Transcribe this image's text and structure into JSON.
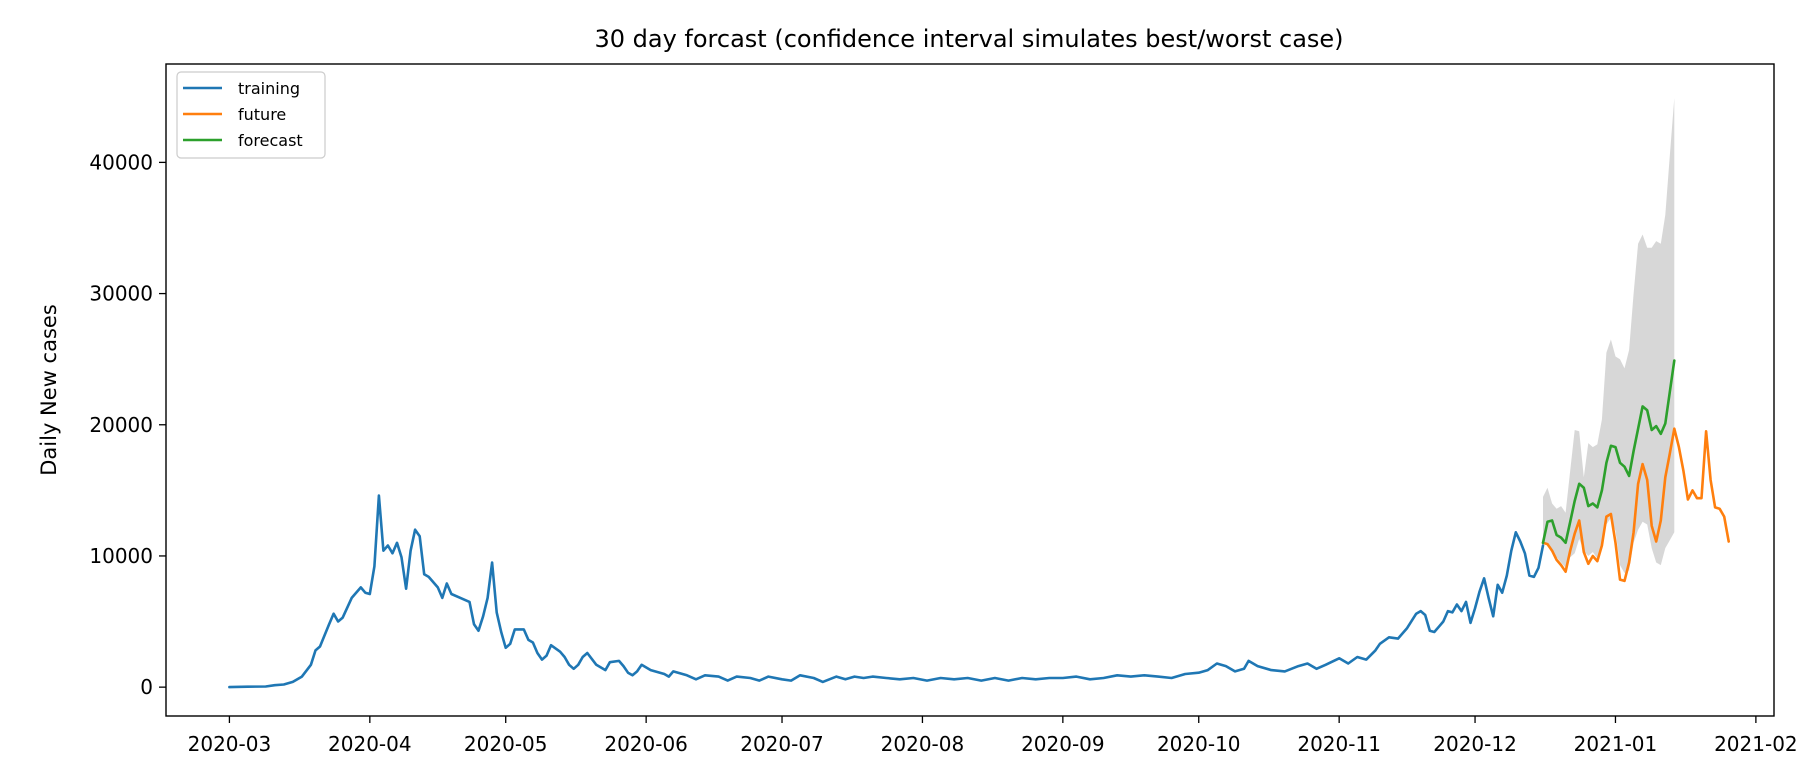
{
  "chart_data": {
    "type": "line",
    "title": "30 day forcast (confidence interval simulates best/worst case)",
    "xlabel": "",
    "ylabel": "Daily New cases",
    "xlim": [
      "2020-02-16",
      "2021-02-05"
    ],
    "ylim": [
      -2200,
      47500
    ],
    "x_ticks": [
      "2020-03",
      "2020-04",
      "2020-05",
      "2020-06",
      "2020-07",
      "2020-08",
      "2020-09",
      "2020-10",
      "2020-11",
      "2020-12",
      "2021-01",
      "2021-02"
    ],
    "y_ticks": [
      0,
      10000,
      20000,
      30000,
      40000
    ],
    "grid": false,
    "legend": {
      "location": "upper-left",
      "entries": [
        "training",
        "future",
        "forecast"
      ]
    },
    "series": [
      {
        "name": "training",
        "color": "#1f77b4",
        "points": [
          [
            "2020-03-01",
            0
          ],
          [
            "2020-03-05",
            30
          ],
          [
            "2020-03-09",
            50
          ],
          [
            "2020-03-11",
            150
          ],
          [
            "2020-03-13",
            200
          ],
          [
            "2020-03-15",
            400
          ],
          [
            "2020-03-17",
            800
          ],
          [
            "2020-03-19",
            1700
          ],
          [
            "2020-03-20",
            2800
          ],
          [
            "2020-03-21",
            3100
          ],
          [
            "2020-03-23",
            4800
          ],
          [
            "2020-03-24",
            5600
          ],
          [
            "2020-03-25",
            5000
          ],
          [
            "2020-03-26",
            5300
          ],
          [
            "2020-03-28",
            6800
          ],
          [
            "2020-03-30",
            7600
          ],
          [
            "2020-03-31",
            7200
          ],
          [
            "2020-04-01",
            7100
          ],
          [
            "2020-04-02",
            9200
          ],
          [
            "2020-04-03",
            14600
          ],
          [
            "2020-04-04",
            10400
          ],
          [
            "2020-04-05",
            10800
          ],
          [
            "2020-04-06",
            10200
          ],
          [
            "2020-04-07",
            11000
          ],
          [
            "2020-04-08",
            9900
          ],
          [
            "2020-04-09",
            7500
          ],
          [
            "2020-04-10",
            10400
          ],
          [
            "2020-04-11",
            12000
          ],
          [
            "2020-04-12",
            11500
          ],
          [
            "2020-04-13",
            8600
          ],
          [
            "2020-04-14",
            8400
          ],
          [
            "2020-04-16",
            7600
          ],
          [
            "2020-04-17",
            6800
          ],
          [
            "2020-04-18",
            7900
          ],
          [
            "2020-04-19",
            7100
          ],
          [
            "2020-04-21",
            6800
          ],
          [
            "2020-04-23",
            6500
          ],
          [
            "2020-04-24",
            4800
          ],
          [
            "2020-04-25",
            4300
          ],
          [
            "2020-04-26",
            5400
          ],
          [
            "2020-04-27",
            6800
          ],
          [
            "2020-04-28",
            9500
          ],
          [
            "2020-04-29",
            5700
          ],
          [
            "2020-04-30",
            4200
          ],
          [
            "2020-05-01",
            3000
          ],
          [
            "2020-05-02",
            3300
          ],
          [
            "2020-05-03",
            4400
          ],
          [
            "2020-05-05",
            4400
          ],
          [
            "2020-05-06",
            3600
          ],
          [
            "2020-05-07",
            3400
          ],
          [
            "2020-05-08",
            2600
          ],
          [
            "2020-05-09",
            2100
          ],
          [
            "2020-05-10",
            2400
          ],
          [
            "2020-05-11",
            3200
          ],
          [
            "2020-05-13",
            2700
          ],
          [
            "2020-05-14",
            2300
          ],
          [
            "2020-05-15",
            1700
          ],
          [
            "2020-05-16",
            1400
          ],
          [
            "2020-05-17",
            1700
          ],
          [
            "2020-05-18",
            2300
          ],
          [
            "2020-05-19",
            2600
          ],
          [
            "2020-05-21",
            1700
          ],
          [
            "2020-05-23",
            1300
          ],
          [
            "2020-05-24",
            1900
          ],
          [
            "2020-05-26",
            2000
          ],
          [
            "2020-05-27",
            1600
          ],
          [
            "2020-05-28",
            1100
          ],
          [
            "2020-05-29",
            900
          ],
          [
            "2020-05-30",
            1200
          ],
          [
            "2020-05-31",
            1700
          ],
          [
            "2020-06-02",
            1300
          ],
          [
            "2020-06-05",
            1000
          ],
          [
            "2020-06-06",
            800
          ],
          [
            "2020-06-07",
            1200
          ],
          [
            "2020-06-10",
            900
          ],
          [
            "2020-06-12",
            600
          ],
          [
            "2020-06-14",
            900
          ],
          [
            "2020-06-17",
            800
          ],
          [
            "2020-06-19",
            500
          ],
          [
            "2020-06-21",
            800
          ],
          [
            "2020-06-24",
            700
          ],
          [
            "2020-06-26",
            500
          ],
          [
            "2020-06-28",
            800
          ],
          [
            "2020-07-01",
            600
          ],
          [
            "2020-07-03",
            500
          ],
          [
            "2020-07-05",
            900
          ],
          [
            "2020-07-08",
            700
          ],
          [
            "2020-07-10",
            400
          ],
          [
            "2020-07-13",
            800
          ],
          [
            "2020-07-15",
            600
          ],
          [
            "2020-07-17",
            800
          ],
          [
            "2020-07-19",
            700
          ],
          [
            "2020-07-21",
            800
          ],
          [
            "2020-07-24",
            700
          ],
          [
            "2020-07-27",
            600
          ],
          [
            "2020-07-30",
            700
          ],
          [
            "2020-08-02",
            500
          ],
          [
            "2020-08-05",
            700
          ],
          [
            "2020-08-08",
            600
          ],
          [
            "2020-08-11",
            700
          ],
          [
            "2020-08-14",
            500
          ],
          [
            "2020-08-17",
            700
          ],
          [
            "2020-08-20",
            500
          ],
          [
            "2020-08-23",
            700
          ],
          [
            "2020-08-26",
            600
          ],
          [
            "2020-08-29",
            700
          ],
          [
            "2020-09-01",
            700
          ],
          [
            "2020-09-04",
            800
          ],
          [
            "2020-09-07",
            600
          ],
          [
            "2020-09-10",
            700
          ],
          [
            "2020-09-13",
            900
          ],
          [
            "2020-09-16",
            800
          ],
          [
            "2020-09-19",
            900
          ],
          [
            "2020-09-22",
            800
          ],
          [
            "2020-09-25",
            700
          ],
          [
            "2020-09-28",
            1000
          ],
          [
            "2020-10-01",
            1100
          ],
          [
            "2020-10-03",
            1300
          ],
          [
            "2020-10-05",
            1800
          ],
          [
            "2020-10-07",
            1600
          ],
          [
            "2020-10-09",
            1200
          ],
          [
            "2020-10-11",
            1400
          ],
          [
            "2020-10-12",
            2000
          ],
          [
            "2020-10-14",
            1600
          ],
          [
            "2020-10-17",
            1300
          ],
          [
            "2020-10-20",
            1200
          ],
          [
            "2020-10-23",
            1600
          ],
          [
            "2020-10-25",
            1800
          ],
          [
            "2020-10-27",
            1400
          ],
          [
            "2020-10-29",
            1700
          ],
          [
            "2020-11-01",
            2200
          ],
          [
            "2020-11-03",
            1800
          ],
          [
            "2020-11-05",
            2300
          ],
          [
            "2020-11-07",
            2100
          ],
          [
            "2020-11-09",
            2800
          ],
          [
            "2020-11-10",
            3300
          ],
          [
            "2020-11-12",
            3800
          ],
          [
            "2020-11-14",
            3700
          ],
          [
            "2020-11-16",
            4500
          ],
          [
            "2020-11-18",
            5600
          ],
          [
            "2020-11-19",
            5800
          ],
          [
            "2020-11-20",
            5500
          ],
          [
            "2020-11-21",
            4300
          ],
          [
            "2020-11-22",
            4200
          ],
          [
            "2020-11-23",
            4600
          ],
          [
            "2020-11-24",
            5000
          ],
          [
            "2020-11-25",
            5800
          ],
          [
            "2020-11-26",
            5700
          ],
          [
            "2020-11-27",
            6300
          ],
          [
            "2020-11-28",
            5800
          ],
          [
            "2020-11-29",
            6500
          ],
          [
            "2020-11-30",
            4900
          ],
          [
            "2020-12-01",
            6000
          ],
          [
            "2020-12-02",
            7300
          ],
          [
            "2020-12-03",
            8300
          ],
          [
            "2020-12-04",
            6800
          ],
          [
            "2020-12-05",
            5400
          ],
          [
            "2020-12-06",
            7800
          ],
          [
            "2020-12-07",
            7200
          ],
          [
            "2020-12-08",
            8500
          ],
          [
            "2020-12-09",
            10400
          ],
          [
            "2020-12-10",
            11800
          ],
          [
            "2020-12-11",
            11100
          ],
          [
            "2020-12-12",
            10200
          ],
          [
            "2020-12-13",
            8500
          ],
          [
            "2020-12-14",
            8400
          ],
          [
            "2020-12-15",
            9100
          ],
          [
            "2020-12-16",
            10800
          ]
        ]
      },
      {
        "name": "future",
        "color": "#ff7f0e",
        "points": [
          [
            "2020-12-16",
            11000
          ],
          [
            "2020-12-17",
            10900
          ],
          [
            "2020-12-18",
            10400
          ],
          [
            "2020-12-19",
            9700
          ],
          [
            "2020-12-20",
            9300
          ],
          [
            "2020-12-21",
            8800
          ],
          [
            "2020-12-22",
            10400
          ],
          [
            "2020-12-23",
            11700
          ],
          [
            "2020-12-24",
            12700
          ],
          [
            "2020-12-25",
            10300
          ],
          [
            "2020-12-26",
            9400
          ],
          [
            "2020-12-27",
            10000
          ],
          [
            "2020-12-28",
            9600
          ],
          [
            "2020-12-29",
            10800
          ],
          [
            "2020-12-30",
            13000
          ],
          [
            "2020-12-31",
            13200
          ],
          [
            "2021-01-01",
            11000
          ],
          [
            "2021-01-02",
            8200
          ],
          [
            "2021-01-03",
            8100
          ],
          [
            "2021-01-04",
            9500
          ],
          [
            "2021-01-05",
            11800
          ],
          [
            "2021-01-06",
            15500
          ],
          [
            "2021-01-07",
            17000
          ],
          [
            "2021-01-08",
            15800
          ],
          [
            "2021-01-09",
            12300
          ],
          [
            "2021-01-10",
            11100
          ],
          [
            "2021-01-11",
            12700
          ],
          [
            "2021-01-12",
            16000
          ],
          [
            "2021-01-13",
            17800
          ],
          [
            "2021-01-14",
            19700
          ],
          [
            "2021-01-15",
            18300
          ],
          [
            "2021-01-16",
            16500
          ],
          [
            "2021-01-17",
            14300
          ],
          [
            "2021-01-18",
            15000
          ],
          [
            "2021-01-19",
            14400
          ],
          [
            "2021-01-20",
            14400
          ],
          [
            "2021-01-21",
            19500
          ],
          [
            "2021-01-22",
            15800
          ],
          [
            "2021-01-23",
            13700
          ],
          [
            "2021-01-24",
            13600
          ],
          [
            "2021-01-25",
            13000
          ],
          [
            "2021-01-26",
            11100
          ]
        ]
      },
      {
        "name": "forecast",
        "color": "#2ca02c",
        "points": [
          [
            "2020-12-16",
            11000
          ],
          [
            "2020-12-17",
            12600
          ],
          [
            "2020-12-18",
            12700
          ],
          [
            "2020-12-19",
            11600
          ],
          [
            "2020-12-20",
            11400
          ],
          [
            "2020-12-21",
            11000
          ],
          [
            "2020-12-22",
            12600
          ],
          [
            "2020-12-23",
            14200
          ],
          [
            "2020-12-24",
            15500
          ],
          [
            "2020-12-25",
            15200
          ],
          [
            "2020-12-26",
            13800
          ],
          [
            "2020-12-27",
            14000
          ],
          [
            "2020-12-28",
            13700
          ],
          [
            "2020-12-29",
            15000
          ],
          [
            "2020-12-30",
            17100
          ],
          [
            "2020-12-31",
            18400
          ],
          [
            "2021-01-01",
            18300
          ],
          [
            "2021-01-02",
            17100
          ],
          [
            "2021-01-03",
            16800
          ],
          [
            "2021-01-04",
            16100
          ],
          [
            "2021-01-05",
            18000
          ],
          [
            "2021-01-06",
            19700
          ],
          [
            "2021-01-07",
            21400
          ],
          [
            "2021-01-08",
            21100
          ],
          [
            "2021-01-09",
            19600
          ],
          [
            "2021-01-10",
            19900
          ],
          [
            "2021-01-11",
            19300
          ],
          [
            "2021-01-12",
            20100
          ],
          [
            "2021-01-13",
            22500
          ],
          [
            "2021-01-14",
            24900
          ]
        ]
      }
    ],
    "confidence_interval": {
      "color": "#d3d3d3",
      "points": [
        [
          "2020-12-16",
          11000,
          14500
        ],
        [
          "2020-12-17",
          10800,
          15200
        ],
        [
          "2020-12-18",
          10500,
          14000
        ],
        [
          "2020-12-19",
          9900,
          13600
        ],
        [
          "2020-12-20",
          9500,
          13800
        ],
        [
          "2020-12-21",
          9100,
          13300
        ],
        [
          "2020-12-22",
          9900,
          16500
        ],
        [
          "2020-12-23",
          10200,
          19600
        ],
        [
          "2020-12-24",
          11300,
          19500
        ],
        [
          "2020-12-25",
          10400,
          16000
        ],
        [
          "2020-12-26",
          10000,
          18600
        ],
        [
          "2020-12-27",
          10300,
          18300
        ],
        [
          "2020-12-28",
          9800,
          18500
        ],
        [
          "2020-12-29",
          10500,
          20400
        ],
        [
          "2020-12-30",
          12400,
          25500
        ],
        [
          "2020-12-31",
          12900,
          26500
        ],
        [
          "2021-01-01",
          11900,
          25200
        ],
        [
          "2021-01-02",
          9300,
          25000
        ],
        [
          "2021-01-03",
          8700,
          24300
        ],
        [
          "2021-01-04",
          8900,
          25700
        ],
        [
          "2021-01-05",
          11000,
          30000
        ],
        [
          "2021-01-06",
          12000,
          33800
        ],
        [
          "2021-01-07",
          12600,
          34500
        ],
        [
          "2021-01-08",
          12400,
          33500
        ],
        [
          "2021-01-09",
          10600,
          33500
        ],
        [
          "2021-01-10",
          9500,
          34000
        ],
        [
          "2021-01-11",
          9300,
          33800
        ],
        [
          "2021-01-12",
          10600,
          36000
        ],
        [
          "2021-01-13",
          11200,
          40500
        ],
        [
          "2021-01-14",
          11800,
          44900
        ]
      ]
    }
  }
}
